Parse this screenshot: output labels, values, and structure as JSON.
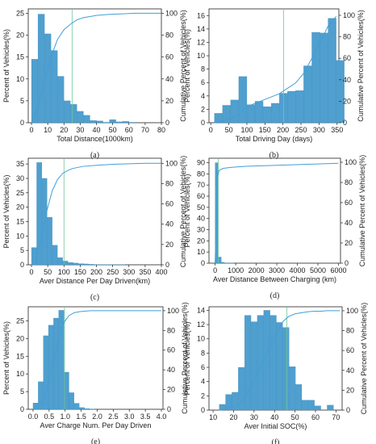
{
  "colors": {
    "bar": "#4f9fcf",
    "bar_edge": "#3d88b6",
    "curve": "#3f9fd6",
    "marker": "#6fc89a",
    "axis": "#222222"
  },
  "chart_data": [
    {
      "type": "bar",
      "panel": "(a)",
      "xlabel": "Total Distance(1000km)",
      "ylabel": "Percent of Vehicles(%)",
      "y2label": "Cumulative Percent of Vehicles(%)",
      "xlim": [
        -2,
        80
      ],
      "ylim": [
        0,
        26
      ],
      "y2lim": [
        0,
        104
      ],
      "xticks": [
        0,
        10,
        20,
        30,
        40,
        50,
        60,
        70,
        80
      ],
      "yticks": [
        0,
        5,
        10,
        15,
        20,
        25
      ],
      "y2ticks": [
        0,
        20,
        40,
        60,
        80,
        100
      ],
      "bin_start": 0,
      "bin_width": 4,
      "values": [
        14.5,
        24.8,
        20.3,
        16.5,
        10.6,
        5.0,
        4.2,
        2.6,
        1.7,
        0.5,
        0.4,
        0.1,
        0.7,
        0.2,
        0.3,
        0.1
      ],
      "marker_x": 25,
      "cumulative": {
        "x": [
          0,
          4,
          8,
          12,
          16,
          20,
          24,
          28,
          32,
          36,
          40,
          48,
          56,
          64,
          72,
          80
        ],
        "y": [
          0,
          14,
          39,
          60,
          76,
          85,
          90,
          94,
          96,
          97,
          98,
          99,
          99.5,
          100,
          100,
          100
        ]
      }
    },
    {
      "type": "bar",
      "panel": "(b)",
      "xlabel": "Total Driving Day (days)",
      "ylabel": "Percent of Vehicles(%)",
      "y2label": "Cumulative Percent of Vehicles(%)",
      "xlim": [
        -5,
        355
      ],
      "ylim": [
        0,
        17
      ],
      "y2lim": [
        0,
        106
      ],
      "xticks": [
        0,
        50,
        100,
        150,
        200,
        250,
        300,
        350
      ],
      "yticks": [
        0,
        2,
        4,
        6,
        8,
        10,
        12,
        14,
        16
      ],
      "y2ticks": [
        0,
        20,
        40,
        60,
        80,
        100
      ],
      "bin_start": 10,
      "bin_width": 22.5,
      "values": [
        1.4,
        2.6,
        3.4,
        6.9,
        2.7,
        3.2,
        2.4,
        2.9,
        4.4,
        4.7,
        4.8,
        8.5,
        13.5,
        13.4,
        15.6,
        9.3
      ],
      "marker_x": 202,
      "cumulative": {
        "x": [
          10,
          32.5,
          55,
          77.5,
          100,
          122.5,
          145,
          167.5,
          190,
          212.5,
          235,
          257.5,
          280,
          302.5,
          325,
          347.5
        ],
        "y": [
          0,
          1.5,
          4,
          7.5,
          15,
          18,
          21,
          24,
          27,
          32,
          37,
          46,
          60,
          74,
          90,
          99
        ]
      }
    },
    {
      "type": "bar",
      "panel": "(c)",
      "xlabel": "Aver Distance Per Day Driven(km)",
      "ylabel": "Percent of Vehicles(%)",
      "y2label": "Cumulative Percent of Vehicles(%)",
      "xlim": [
        -10,
        400
      ],
      "ylim": [
        0,
        37
      ],
      "y2lim": [
        0,
        105
      ],
      "xticks": [
        0,
        50,
        100,
        150,
        200,
        250,
        300,
        350,
        400
      ],
      "yticks": [
        0,
        5,
        10,
        15,
        20,
        25,
        30,
        35
      ],
      "y2ticks": [
        0,
        20,
        40,
        60,
        80,
        100
      ],
      "bin_start": 0,
      "bin_width": 16,
      "values": [
        6.0,
        35.5,
        30.0,
        16.5,
        6.8,
        2.5,
        1.3,
        0.8,
        0.6,
        0.4,
        0.3,
        0.2,
        0.1,
        0.1,
        0.1,
        0.1,
        0.05,
        0.05
      ],
      "marker_x": 100,
      "cumulative": {
        "x": [
          0,
          16,
          32,
          48,
          64,
          80,
          96,
          112,
          128,
          144,
          160,
          200,
          250,
          300,
          350,
          400
        ],
        "y": [
          0,
          8,
          28,
          54,
          73,
          84,
          90,
          93,
          95,
          96,
          97,
          98,
          99,
          99.5,
          100,
          100
        ]
      }
    },
    {
      "type": "bar",
      "panel": "(d)",
      "xlabel": "Aver Distance Between Charging (km)",
      "ylabel": "Percent of Vehicles(%)",
      "y2label": "Cumulative Percent of Vehicles(%)",
      "xlim": [
        -300,
        6100
      ],
      "ylim": [
        0,
        94
      ],
      "y2lim": [
        0,
        104
      ],
      "xticks": [
        0,
        1000,
        2000,
        3000,
        4000,
        5000,
        6000
      ],
      "yticks": [
        0,
        10,
        20,
        30,
        40,
        50,
        60,
        70,
        80,
        90
      ],
      "y2ticks": [
        0,
        20,
        40,
        60,
        80,
        100
      ],
      "bin_start": 0,
      "bin_width": 150,
      "values": [
        90,
        5.5,
        0.8,
        0.3,
        0.2,
        0.1
      ],
      "marker_x": 150,
      "cumulative": {
        "x": [
          0,
          100,
          200,
          400,
          800,
          1500,
          3000,
          4500,
          6000
        ],
        "y": [
          0,
          85,
          92,
          94,
          95,
          96,
          97,
          98,
          99
        ]
      }
    },
    {
      "type": "bar",
      "panel": "(e)",
      "xlabel": "Aver Charge Num. Per Day Driven",
      "ylabel": "Percent of Vehicles(%)",
      "y2label": "Cumulative Percent of Vehicles(%)",
      "xlim": [
        -0.15,
        4.05
      ],
      "ylim": [
        0,
        29
      ],
      "y2lim": [
        0,
        104
      ],
      "xticks": [
        "0.0",
        "0.5",
        "1.0",
        "1.5",
        "2.0",
        "2.5",
        "3.0",
        "3.5",
        "4.0"
      ],
      "yticks": [
        0,
        5,
        10,
        15,
        20,
        25
      ],
      "y2ticks": [
        0,
        20,
        40,
        60,
        80,
        100
      ],
      "bin_start": 0,
      "bin_width": 0.16,
      "values": [
        1.8,
        7.8,
        20.8,
        23.8,
        25.8,
        28.0,
        10.5,
        4.7,
        1.7,
        0.5,
        0.2,
        0.1
      ],
      "marker_x": 0.98,
      "cumulative": {
        "x": [
          0,
          0.16,
          0.32,
          0.48,
          0.64,
          0.8,
          0.96,
          1.12,
          1.28,
          1.44,
          1.6,
          1.8,
          2.2,
          3.0,
          4.0
        ],
        "y": [
          0,
          2,
          9,
          28,
          50,
          72,
          88,
          95,
          98,
          99,
          99.5,
          100,
          100,
          100,
          100
        ]
      }
    },
    {
      "type": "bar",
      "panel": "(f)",
      "xlabel": "Aver Initial SOC(%)",
      "ylabel": "Percent of Vehicles(%)",
      "y2label": "Cumulative Percent of Vehicles(%)",
      "xlim": [
        8,
        73
      ],
      "ylim": [
        0,
        14.5
      ],
      "y2lim": [
        0,
        104
      ],
      "xticks": [
        10,
        20,
        30,
        40,
        50,
        60,
        70
      ],
      "yticks": [
        0,
        2,
        4,
        6,
        8,
        10,
        12,
        14
      ],
      "y2ticks": [
        0,
        20,
        40,
        60,
        80,
        100
      ],
      "bin_start": 13,
      "bin_width": 3.1,
      "values": [
        0.8,
        2.2,
        2.5,
        6.0,
        13.3,
        12.4,
        13.3,
        14.0,
        13.3,
        12.3,
        11.6,
        6.1,
        3.6,
        1.4,
        1.4,
        0.6,
        0,
        0.7
      ],
      "marker_x": 46,
      "cumulative": {
        "x": [
          13,
          16.1,
          19.2,
          22.3,
          25.4,
          28.5,
          31.6,
          34.7,
          37.8,
          40.9,
          44,
          47.1,
          50.2,
          53.3,
          56.4,
          59.5,
          62.6,
          65.7,
          68.8,
          72
        ],
        "y": [
          0,
          1,
          3,
          5.5,
          11.5,
          24.5,
          37,
          50,
          64,
          77,
          89,
          94.5,
          97,
          98,
          99,
          99.5,
          99.5,
          100,
          100,
          100
        ]
      }
    }
  ]
}
